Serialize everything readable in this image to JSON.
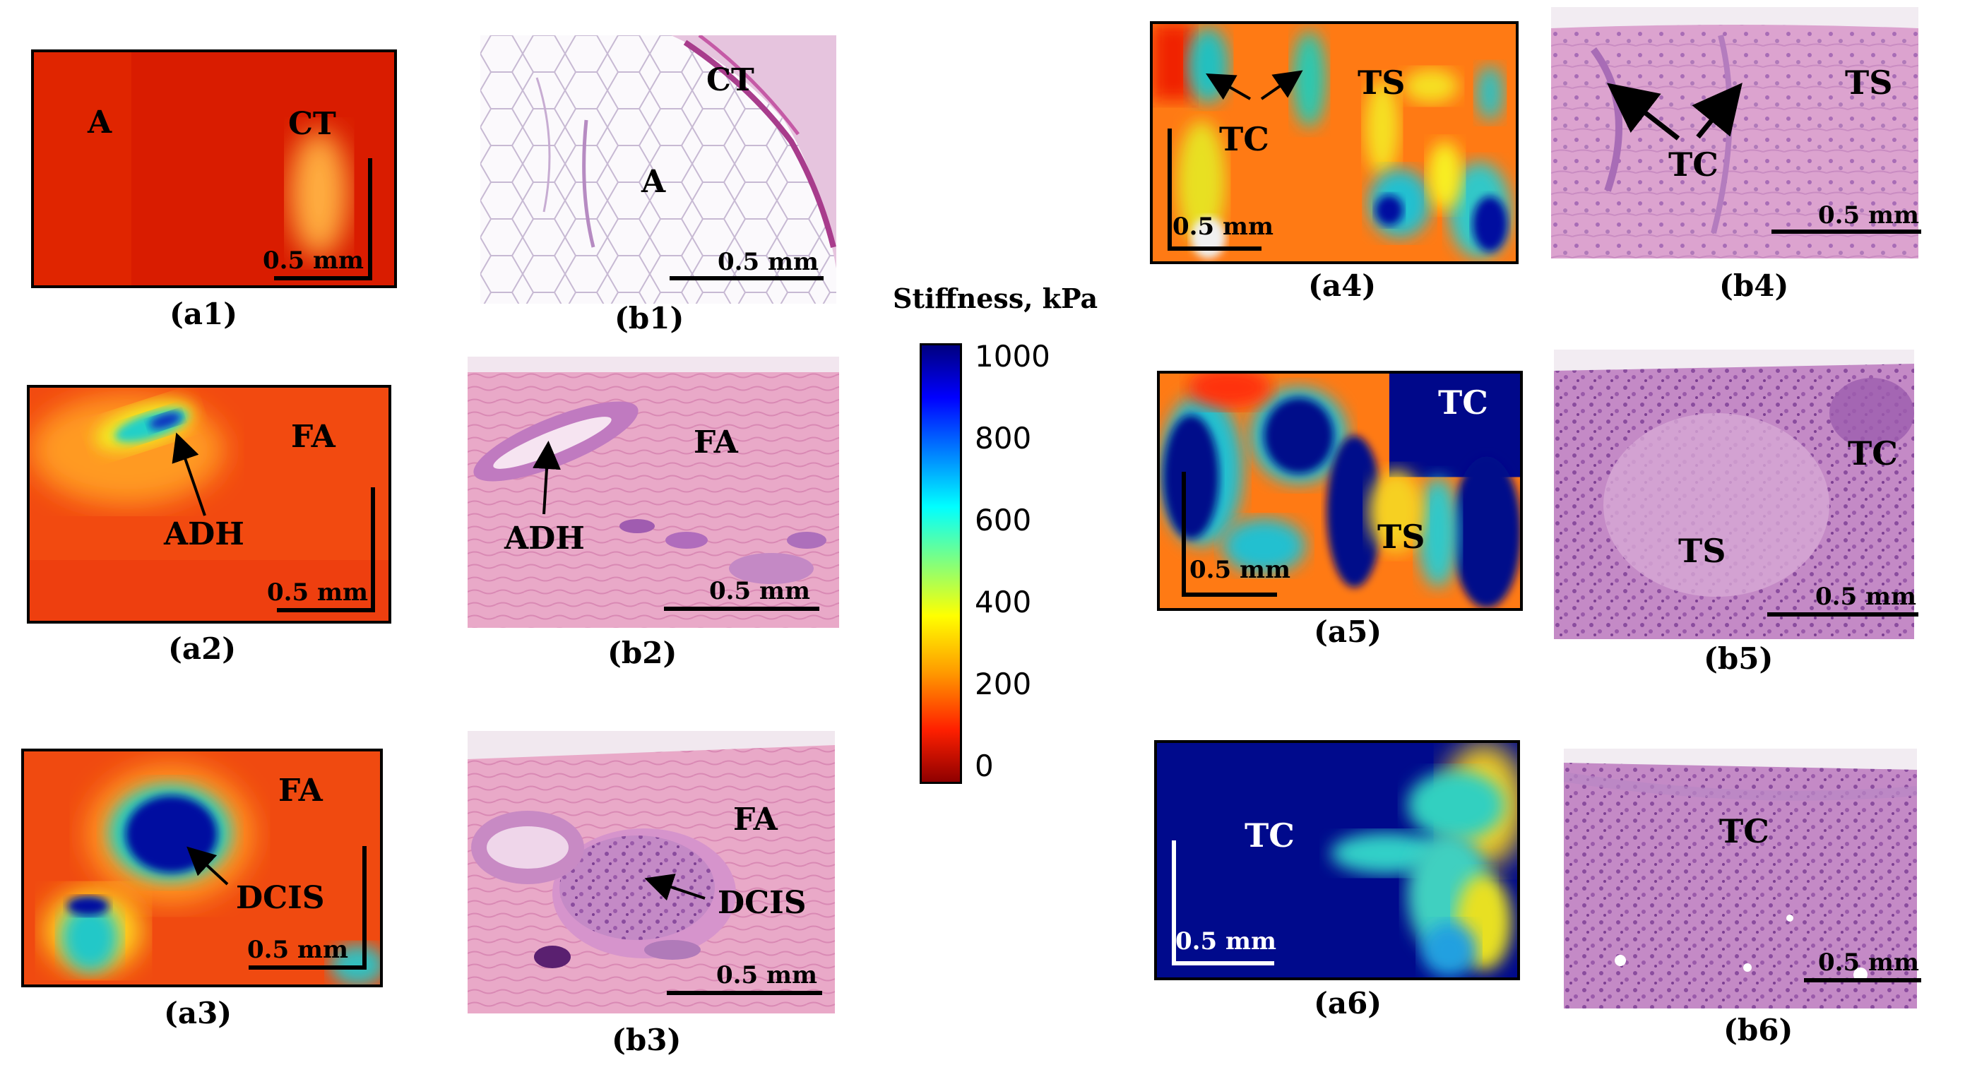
{
  "colorbar": {
    "title": "Stiffness, kPa",
    "ticks": [
      "1000",
      "800",
      "600",
      "400",
      "200",
      "0"
    ],
    "range": [
      0,
      1000
    ],
    "colors": [
      "#00007f",
      "#0000ff",
      "#00ffff",
      "#ffff00",
      "#ff7f00",
      "#ff0000",
      "#7f0000"
    ]
  },
  "scalebar_label": "0.5 mm",
  "panels": {
    "a1": {
      "caption": "(a1)",
      "labels": [
        "A",
        "CT"
      ]
    },
    "b1": {
      "caption": "(b1)",
      "labels": [
        "CT",
        "A"
      ]
    },
    "a2": {
      "caption": "(a2)",
      "labels": [
        "FA",
        "ADH"
      ]
    },
    "b2": {
      "caption": "(b2)",
      "labels": [
        "FA",
        "ADH"
      ]
    },
    "a3": {
      "caption": "(a3)",
      "labels": [
        "FA",
        "DCIS"
      ]
    },
    "b3": {
      "caption": "(b3)",
      "labels": [
        "FA",
        "DCIS"
      ]
    },
    "a4": {
      "caption": "(a4)",
      "labels": [
        "TS",
        "TC"
      ]
    },
    "b4": {
      "caption": "(b4)",
      "labels": [
        "TS",
        "TC"
      ]
    },
    "a5": {
      "caption": "(a5)",
      "labels": [
        "TC",
        "TS"
      ]
    },
    "b5": {
      "caption": "(b5)",
      "labels": [
        "TC",
        "TS"
      ]
    },
    "a6": {
      "caption": "(a6)",
      "labels": [
        "TC"
      ]
    },
    "b6": {
      "caption": "(b6)",
      "labels": [
        "TC"
      ]
    }
  }
}
